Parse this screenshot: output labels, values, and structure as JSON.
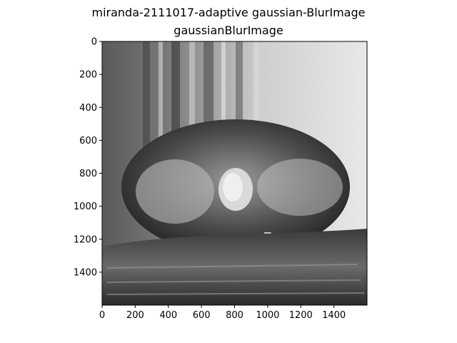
{
  "figure": {
    "suptitle": "miranda-2111017-adaptive gaussian-BlurImage",
    "axes_title": "gaussianBlurImage"
  },
  "chart_data": {
    "type": "heatmap",
    "title": "gaussianBlurImage",
    "suptitle": "miranda-2111017-adaptive gaussian-BlurImage",
    "image_description_note": "",
    "colormap": "gray",
    "xlim": [
      0,
      1600
    ],
    "ylim": [
      1600,
      0
    ],
    "x_ticks": [
      0,
      200,
      400,
      600,
      800,
      1000,
      1200,
      1400
    ],
    "y_ticks": [
      0,
      200,
      400,
      600,
      800,
      1000,
      1200,
      1400
    ],
    "xlabel": "",
    "ylabel": "",
    "grid": false
  }
}
